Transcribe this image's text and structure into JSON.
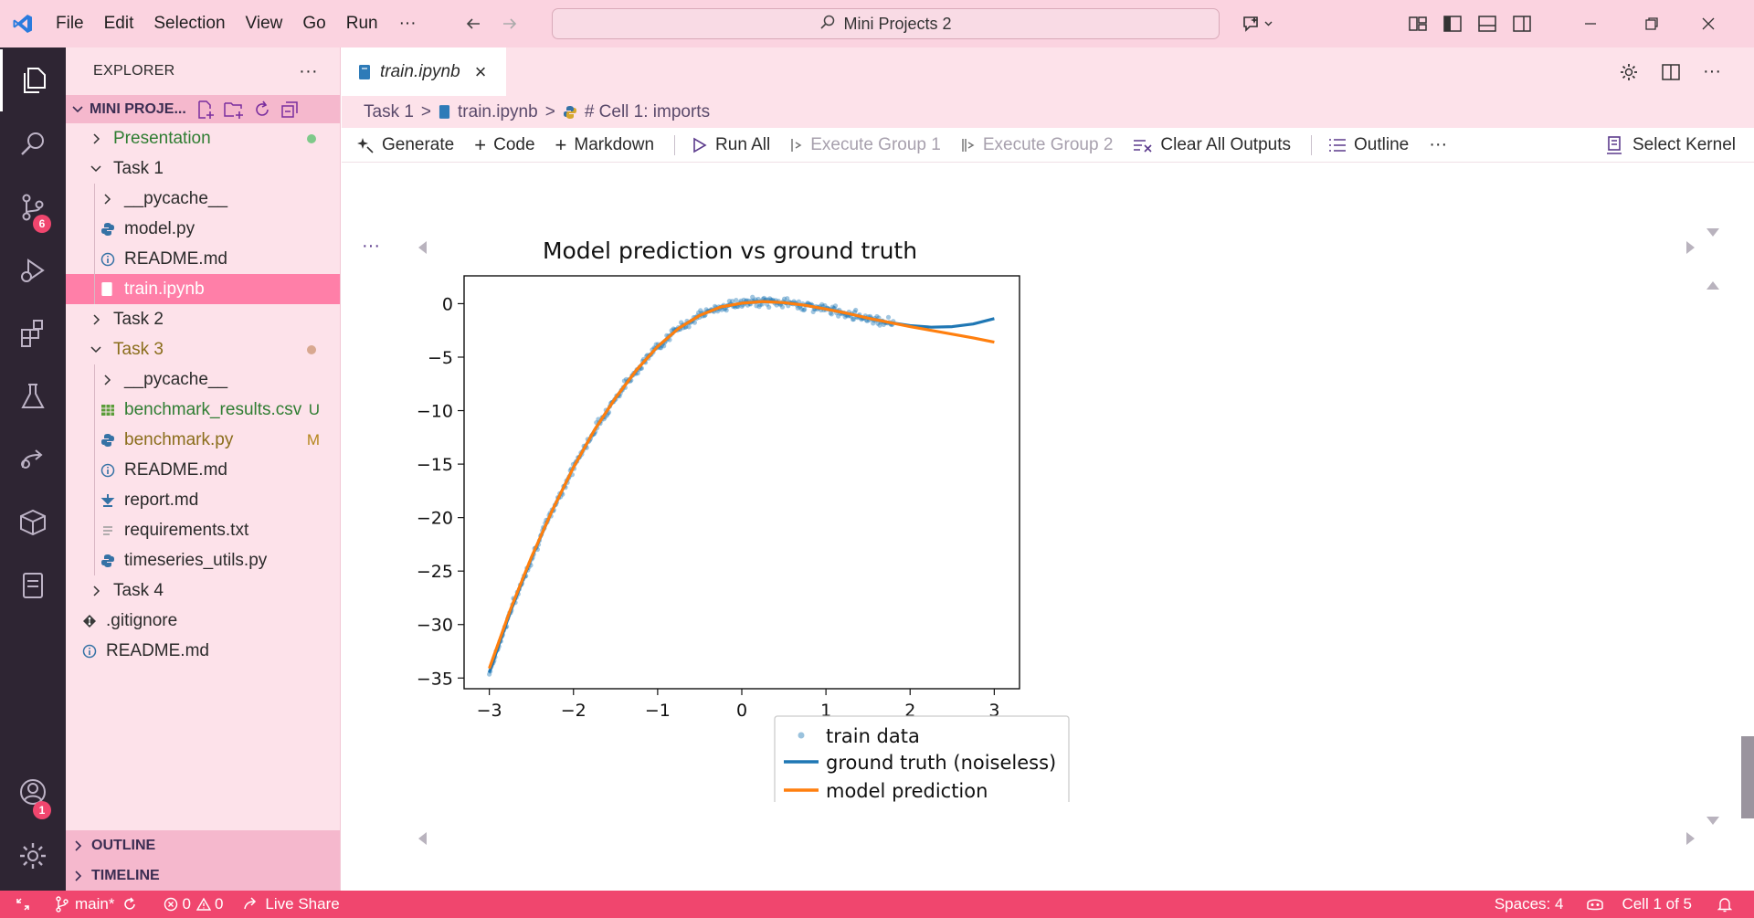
{
  "menu": {
    "items": [
      "File",
      "Edit",
      "Selection",
      "View",
      "Go",
      "Run"
    ],
    "more": "···"
  },
  "command_center": {
    "text": "Mini Projects 2"
  },
  "explorer": {
    "title": "EXPLORER",
    "more": "···",
    "workspace": "MINI PROJE...",
    "tree": [
      {
        "label": "Presentation",
        "type": "folder",
        "state": "collapsed",
        "color": "#2f7d32",
        "dot": "#7fc98a"
      },
      {
        "label": "Task 1",
        "type": "folder",
        "state": "expanded"
      },
      {
        "label": "__pycache__",
        "type": "folder",
        "state": "collapsed"
      },
      {
        "label": "model.py",
        "type": "python"
      },
      {
        "label": "README.md",
        "type": "info"
      },
      {
        "label": "train.ipynb",
        "type": "notebook",
        "selected": true
      },
      {
        "label": "Task 2",
        "type": "folder",
        "state": "collapsed"
      },
      {
        "label": "Task 3",
        "type": "folder",
        "state": "expanded",
        "color": "#8a6d1b",
        "dot": "#d8a890"
      },
      {
        "label": "__pycache__",
        "type": "folder",
        "state": "collapsed"
      },
      {
        "label": "benchmark_results.csv",
        "type": "csv",
        "color": "#2f7d32",
        "deco": "U",
        "deco_color": "#2f7d32"
      },
      {
        "label": "benchmark.py",
        "type": "python",
        "color": "#8a6d1b",
        "deco": "M",
        "deco_color": "#b5861d"
      },
      {
        "label": "README.md",
        "type": "info"
      },
      {
        "label": "report.md",
        "type": "download"
      },
      {
        "label": "requirements.txt",
        "type": "text"
      },
      {
        "label": "timeseries_utils.py",
        "type": "python"
      },
      {
        "label": "Task 4",
        "type": "folder",
        "state": "collapsed"
      },
      {
        "label": ".gitignore",
        "type": "git"
      },
      {
        "label": "README.md",
        "type": "info"
      }
    ],
    "outline": "OUTLINE",
    "timeline": "TIMELINE"
  },
  "activity": {
    "scm_badge": "6",
    "account_badge": "1"
  },
  "editor": {
    "tab": {
      "label": "train.ipynb",
      "close": "×"
    },
    "breadcrumb": {
      "part1": "Task 1",
      "part2": "train.ipynb",
      "part3": "# Cell 1: imports",
      "sep": ">"
    },
    "toolbar": {
      "generate": "Generate",
      "code": "Code",
      "markdown": "Markdown",
      "run_all": "Run All",
      "exec1": "Execute Group 1",
      "exec2": "Execute Group 2",
      "clear": "Clear All Outputs",
      "outline": "Outline",
      "more": "···",
      "kernel": "Select Kernel"
    },
    "cell_more": "···"
  },
  "status": {
    "branch": "main*",
    "errors": "0",
    "warnings": "0",
    "live_share": "Live Share",
    "spaces": "Spaces: 4",
    "cell": "Cell 1 of 5"
  },
  "chart_data": {
    "type": "line",
    "title": "Model prediction vs ground truth",
    "xlabel": "",
    "ylabel": "",
    "xlim": [
      -3.3,
      3.3
    ],
    "ylim": [
      -36,
      2.6
    ],
    "xticks": [
      -3,
      -2,
      -1,
      0,
      1,
      2,
      3
    ],
    "yticks": [
      0,
      -5,
      -10,
      -15,
      -20,
      -25,
      -30,
      -35
    ],
    "xtick_labels": [
      "−3",
      "−2",
      "−1",
      "0",
      "1",
      "2",
      "3"
    ],
    "ytick_labels": [
      "0",
      "−5",
      "−10",
      "−15",
      "−20",
      "−25",
      "−30",
      "−35"
    ],
    "legend": {
      "position": "lower-right",
      "entries": [
        "train data",
        "ground truth (noiseless)",
        "model prediction"
      ]
    },
    "colors": {
      "train": "#1f77b4",
      "truth": "#1f77b4",
      "pred": "#ff7f0e"
    },
    "series": [
      {
        "name": "train data",
        "kind": "scatter",
        "x_range": [
          -3,
          1.8
        ],
        "noise": 0.35
      },
      {
        "name": "ground truth (noiseless)",
        "x": [
          -3,
          -2.75,
          -2.5,
          -2.25,
          -2,
          -1.75,
          -1.5,
          -1.25,
          -1,
          -0.75,
          -0.5,
          -0.25,
          0,
          0.25,
          0.5,
          0.75,
          1,
          1.25,
          1.5,
          1.75,
          2,
          2.25,
          2.5,
          2.75,
          3
        ],
        "y": [
          -34.5,
          -28.8,
          -23.8,
          -19.3,
          -15.3,
          -11.8,
          -8.8,
          -6.2,
          -4.0,
          -2.3,
          -1.1,
          -0.3,
          0.05,
          0.2,
          0.1,
          -0.15,
          -0.5,
          -0.9,
          -1.35,
          -1.75,
          -2.05,
          -2.2,
          -2.15,
          -1.9,
          -1.4
        ]
      },
      {
        "name": "model prediction",
        "x": [
          -3,
          -2.75,
          -2.5,
          -2.25,
          -2,
          -1.75,
          -1.5,
          -1.25,
          -1,
          -0.75,
          -0.5,
          -0.25,
          0,
          0.25,
          0.5,
          0.75,
          1,
          1.25,
          1.5,
          1.75,
          2,
          2.25,
          2.5,
          2.75,
          3
        ],
        "y": [
          -34.1,
          -28.6,
          -23.7,
          -19.3,
          -15.3,
          -11.8,
          -8.8,
          -6.2,
          -4.0,
          -2.3,
          -1.1,
          -0.3,
          0.05,
          0.2,
          0.1,
          -0.15,
          -0.5,
          -0.9,
          -1.35,
          -1.75,
          -2.15,
          -2.5,
          -2.85,
          -3.2,
          -3.6
        ]
      }
    ]
  }
}
